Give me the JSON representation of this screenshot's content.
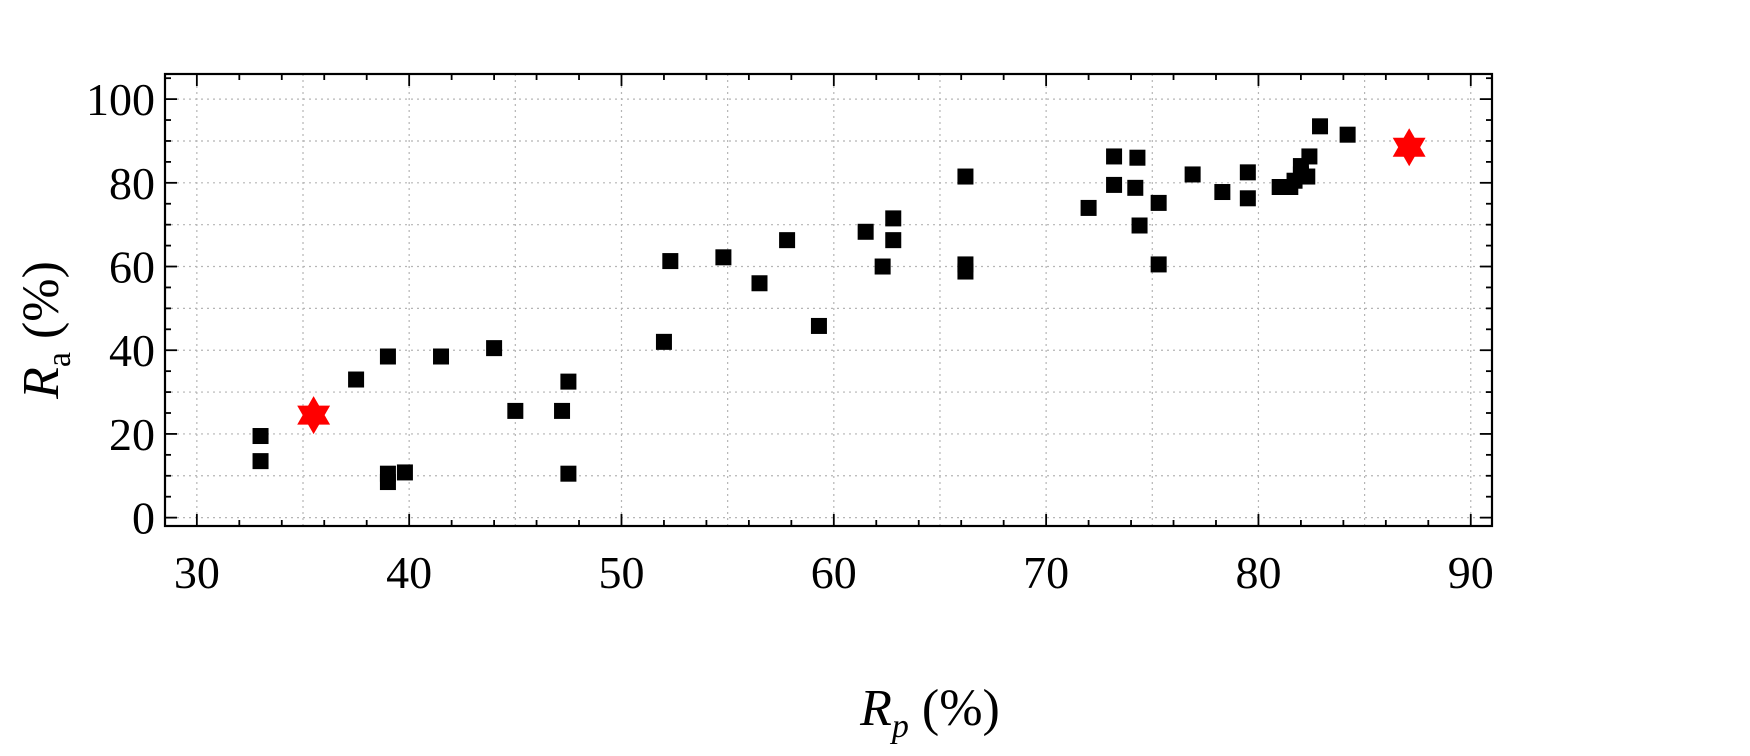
{
  "chart_data": {
    "type": "scatter",
    "xlabel": {
      "main": "R",
      "sub": "p",
      "unit": " (%)"
    },
    "ylabel": {
      "main": "R",
      "sub": "a",
      "unit": " (%)"
    },
    "xlim": [
      28.5,
      91
    ],
    "ylim": [
      -2,
      106
    ],
    "x_ticks": [
      30,
      40,
      50,
      60,
      70,
      80,
      90
    ],
    "y_ticks": [
      0,
      20,
      40,
      60,
      80,
      100
    ],
    "x_minor_step": 5,
    "y_minor_step": 10,
    "grid": true,
    "series": [
      {
        "marker": "square",
        "color": "#000000",
        "points": [
          [
            33.0,
            19.5
          ],
          [
            33.0,
            13.5
          ],
          [
            37.5,
            33.0
          ],
          [
            39.0,
            38.5
          ],
          [
            39.0,
            10.5
          ],
          [
            39.0,
            8.5
          ],
          [
            39.8,
            10.8
          ],
          [
            41.5,
            38.5
          ],
          [
            44.0,
            40.5
          ],
          [
            45.0,
            25.5
          ],
          [
            47.2,
            25.5
          ],
          [
            47.5,
            32.5
          ],
          [
            47.5,
            10.5
          ],
          [
            52.0,
            42.0
          ],
          [
            52.3,
            61.3
          ],
          [
            54.8,
            62.2
          ],
          [
            56.5,
            56.0
          ],
          [
            57.8,
            66.3
          ],
          [
            59.3,
            45.8
          ],
          [
            61.5,
            68.3
          ],
          [
            62.3,
            60.0
          ],
          [
            62.8,
            71.5
          ],
          [
            62.8,
            66.3
          ],
          [
            66.2,
            81.5
          ],
          [
            66.2,
            60.5
          ],
          [
            66.2,
            58.8
          ],
          [
            72.0,
            74.0
          ],
          [
            73.2,
            86.3
          ],
          [
            73.2,
            79.5
          ],
          [
            74.3,
            86.0
          ],
          [
            74.2,
            78.8
          ],
          [
            74.4,
            69.8
          ],
          [
            75.3,
            75.2
          ],
          [
            75.3,
            60.5
          ],
          [
            76.9,
            82.0
          ],
          [
            78.3,
            77.8
          ],
          [
            79.5,
            82.5
          ],
          [
            79.5,
            76.3
          ],
          [
            81.0,
            79.0
          ],
          [
            81.5,
            79.0
          ],
          [
            81.7,
            80.5
          ],
          [
            82.0,
            82.0
          ],
          [
            82.0,
            84.0
          ],
          [
            82.4,
            86.3
          ],
          [
            82.3,
            81.5
          ],
          [
            82.9,
            93.5
          ],
          [
            84.2,
            91.5
          ]
        ]
      },
      {
        "marker": "star",
        "color": "#ff0000",
        "points": [
          [
            35.5,
            24.5
          ],
          [
            87.1,
            88.5
          ]
        ]
      }
    ]
  }
}
